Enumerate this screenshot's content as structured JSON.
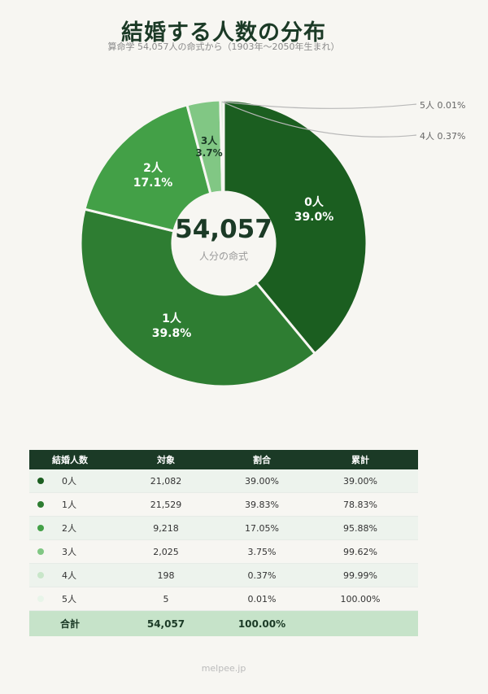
{
  "header": {
    "title": "結婚する人数の分布",
    "subtitle": "算命学  54,057人の命式から（1903年〜2050年生まれ）"
  },
  "center": {
    "value": "54,057",
    "label": "人分の命式"
  },
  "slice_labels": [
    {
      "name": "0人",
      "pct": "39.0%"
    },
    {
      "name": "1人",
      "pct": "39.8%"
    },
    {
      "name": "2人",
      "pct": "17.1%"
    },
    {
      "name": "3人",
      "pct": "3.7%"
    }
  ],
  "external_labels": [
    {
      "text": "5人  0.01%"
    },
    {
      "text": "4人  0.37%"
    }
  ],
  "table": {
    "headers": [
      "結婚人数",
      "対象",
      "割合",
      "累計"
    ],
    "rows": [
      {
        "label": "0人",
        "count": "21,082",
        "ratio": "39.00%",
        "cumulative": "39.00%",
        "color": "#1b5e20"
      },
      {
        "label": "1人",
        "count": "21,529",
        "ratio": "39.83%",
        "cumulative": "78.83%",
        "color": "#2e7d32"
      },
      {
        "label": "2人",
        "count": "9,218",
        "ratio": "17.05%",
        "cumulative": "95.88%",
        "color": "#43a047"
      },
      {
        "label": "3人",
        "count": "2,025",
        "ratio": "3.75%",
        "cumulative": "99.62%",
        "color": "#81c784"
      },
      {
        "label": "4人",
        "count": "198",
        "ratio": "0.37%",
        "cumulative": "99.99%",
        "color": "#c8e6c9"
      },
      {
        "label": "5人",
        "count": "5",
        "ratio": "0.01%",
        "cumulative": "100.00%",
        "color": "#e8f5e9"
      }
    ],
    "total": {
      "label": "合計",
      "count": "54,057",
      "ratio": "100.00%"
    }
  },
  "footer": {
    "text": "melpee.jp"
  },
  "chart_data": {
    "type": "pie",
    "title": "結婚する人数の分布",
    "subtitle": "算命学 54,057人の命式から（1903年〜2050年生まれ）",
    "categories": [
      "0人",
      "1人",
      "2人",
      "3人",
      "4人",
      "5人"
    ],
    "values": [
      21082,
      21529,
      9218,
      2025,
      198,
      5
    ],
    "percentages": [
      39.0,
      39.83,
      17.05,
      3.75,
      0.37,
      0.01
    ],
    "colors": [
      "#1b5e20",
      "#2e7d32",
      "#43a047",
      "#81c784",
      "#c8e6c9",
      "#e8f5e9"
    ],
    "donut": true,
    "center_text": "54,057 人分の命式",
    "total": 54057
  }
}
